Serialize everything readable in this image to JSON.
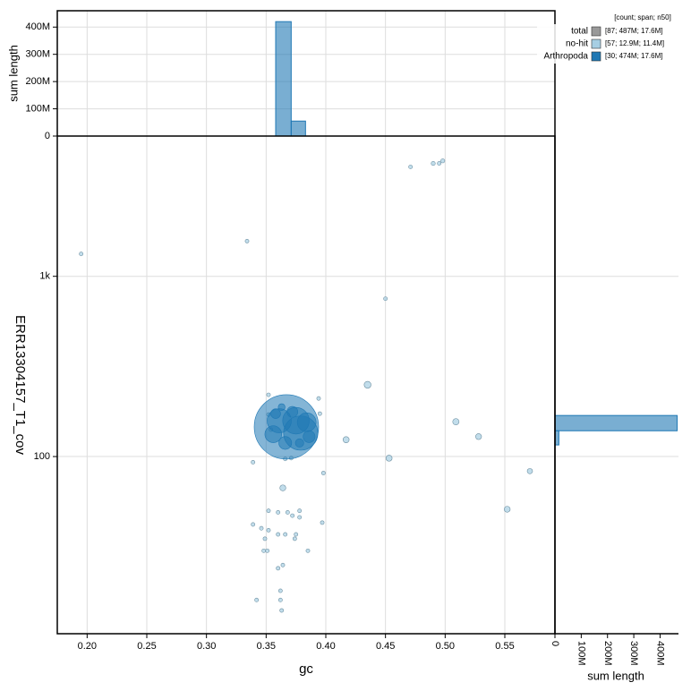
{
  "chart_data": [
    {
      "type": "scatter",
      "x_label": "gc",
      "y_label": "ERR13304157_T1_cov",
      "xlim": [
        0.175,
        0.592
      ],
      "xticks": [
        {
          "value": 0.2,
          "label": "0.20"
        },
        0.25,
        {
          "value": 0.3,
          "label": "0.30"
        },
        0.35,
        {
          "value": 0.4,
          "label": "0.40"
        },
        0.45,
        {
          "value": 0.5,
          "label": "0.50"
        },
        0.55
      ],
      "ylim": [
        10.4,
        6000
      ],
      "yticks": [
        100,
        {
          "value": 1000,
          "label": "1k"
        }
      ],
      "log_y": true,
      "grid": true,
      "legend_title": "[count; span; n50]",
      "legend": "upper right",
      "series": [
        {
          "name": "total",
          "color": "#999999",
          "stats": "[87; 487M; 17.6M]",
          "x": [],
          "values": [],
          "sizes": []
        },
        {
          "name": "no-hit",
          "color": "#a6cee3",
          "stats": "[57; 12.9M; 11.4M]",
          "x": [
            0.471,
            0.49,
            0.495,
            0.498,
            0.195,
            0.334,
            0.45,
            0.435,
            0.509,
            0.528,
            0.417,
            0.453,
            0.571,
            0.552,
            0.394,
            0.395,
            0.352,
            0.339,
            0.398,
            0.364,
            0.352,
            0.36,
            0.368,
            0.372,
            0.378,
            0.378,
            0.397,
            0.339,
            0.346,
            0.352,
            0.36,
            0.366,
            0.375,
            0.374,
            0.349,
            0.385,
            0.351,
            0.348,
            0.36,
            0.364,
            0.362,
            0.362,
            0.342,
            0.363,
            0.366,
            0.352,
            0.354,
            0.371
          ],
          "values": [
            4045,
            4230,
            4230,
            4370,
            1331,
            1567,
            751,
            250,
            156,
            129,
            124,
            98,
            83,
            51,
            210,
            173,
            220,
            93,
            81,
            67,
            50,
            49,
            49,
            47,
            50,
            46,
            43,
            42,
            40,
            39,
            37,
            37,
            37,
            35,
            35,
            30,
            30,
            30,
            24,
            25,
            18,
            16,
            16,
            14,
            97,
            171,
            141,
            98
          ],
          "sizes": [
            60000,
            70000,
            60000,
            70000,
            60000,
            60000,
            60000,
            200000,
            170000,
            150000,
            160000,
            160000,
            120000,
            150000,
            60000,
            60000,
            60000,
            60000,
            60000,
            150000,
            60000,
            60000,
            60000,
            60000,
            60000,
            60000,
            60000,
            60000,
            60000,
            60000,
            60000,
            60000,
            60000,
            60000,
            60000,
            60000,
            60000,
            60000,
            60000,
            60000,
            60000,
            60000,
            60000,
            60000,
            60000,
            60000,
            60000,
            60000
          ]
        },
        {
          "name": "Arthropoda",
          "color": "#1f78b4",
          "stats": "[30; 474M; 17.6M]",
          "x": [
            0.367,
            0.379,
            0.375,
            0.361,
            0.384,
            0.356,
            0.366,
            0.386,
            0.372,
            0.358,
            0.378,
            0.363
          ],
          "values": [
            146,
            135,
            158,
            158,
            155,
            133,
            119,
            129,
            177,
            173,
            119,
            188
          ],
          "sizes": [
            17600000,
            5000000,
            3000000,
            2500000,
            1500000,
            1200000,
            700000,
            600000,
            500000,
            400000,
            300000,
            200000
          ]
        }
      ]
    },
    {
      "type": "histogram",
      "orientation": "vertical",
      "y_label": "sum length",
      "color": "#1f78b4",
      "bins": [
        0.358,
        0.371,
        0.383
      ],
      "values": [
        420000000,
        55000000
      ],
      "xlim": [
        0.175,
        0.592
      ],
      "ylim": [
        0,
        460000000
      ],
      "yticks": [
        0,
        {
          "value": 100000000,
          "label": "100M"
        },
        {
          "value": 200000000,
          "label": "200M"
        },
        {
          "value": 300000000,
          "label": "300M"
        },
        {
          "value": 400000000,
          "label": "400M"
        }
      ]
    },
    {
      "type": "histogram",
      "orientation": "horizontal",
      "x_label": "sum length",
      "color": "#1f78b4",
      "bins": [
        116,
        139,
        169
      ],
      "values": [
        15000000,
        465000000
      ],
      "xlim": [
        0,
        470000000
      ],
      "ylim": [
        10.4,
        6000
      ],
      "log_y": true,
      "xticks": [
        0,
        {
          "value": 100000000,
          "label": "100M"
        },
        {
          "value": 200000000,
          "label": "200M"
        },
        {
          "value": 300000000,
          "label": "300M"
        },
        {
          "value": 400000000,
          "label": "400M"
        }
      ]
    }
  ]
}
